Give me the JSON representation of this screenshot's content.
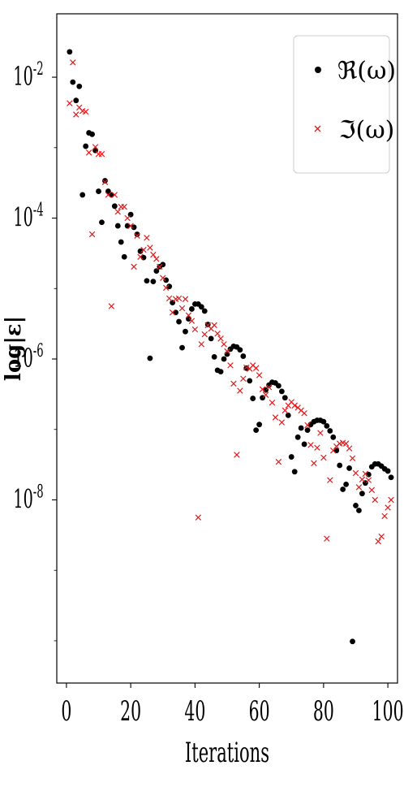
{
  "chart_data": {
    "type": "scatter",
    "xlabel": "Iterations",
    "ylabel": "log|ε|",
    "xlim": [
      -3,
      103
    ],
    "ylog": true,
    "ylim_exp": [
      -10.6,
      -1.1
    ],
    "x_ticks": [
      "0",
      "20",
      "40",
      "60",
      "80",
      "100"
    ],
    "x_tick_values": [
      0,
      20,
      40,
      60,
      80,
      100
    ],
    "y_ticks": [
      {
        "base": "10",
        "exp": "-2",
        "value_exp": -2
      },
      {
        "base": "10",
        "exp": "-4",
        "value_exp": -4
      },
      {
        "base": "10",
        "exp": "-6",
        "value_exp": -6
      },
      {
        "base": "10",
        "exp": "-8",
        "value_exp": -8
      }
    ],
    "legend_position": "top-right",
    "series": [
      {
        "name": "ℜ(ω)",
        "marker": "circle",
        "color": "#000000",
        "points": [
          [
            1,
            -1.64
          ],
          [
            2,
            -2.07
          ],
          [
            3,
            -2.33
          ],
          [
            4,
            -2.13
          ],
          [
            5,
            -3.67
          ],
          [
            6,
            -2.98
          ],
          [
            7,
            -2.79
          ],
          [
            8,
            -2.81
          ],
          [
            9,
            -3.04
          ],
          [
            10,
            -3.62
          ],
          [
            11,
            -4.06
          ],
          [
            12,
            -3.47
          ],
          [
            13,
            -3.62
          ],
          [
            14,
            -3.67
          ],
          [
            15,
            -3.83
          ],
          [
            16,
            -4.11
          ],
          [
            17,
            -4.34
          ],
          [
            18,
            -4.55
          ],
          [
            19,
            -4.11
          ],
          [
            20,
            -3.95
          ],
          [
            21,
            -4.13
          ],
          [
            22,
            -4.23
          ],
          [
            23,
            -4.47
          ],
          [
            24,
            -4.56
          ],
          [
            25,
            -4.89
          ],
          [
            26,
            -5.99
          ],
          [
            27,
            -4.9
          ],
          [
            28,
            -4.75
          ],
          [
            29,
            -4.69
          ],
          [
            30,
            -4.66
          ],
          [
            31,
            -4.88
          ],
          [
            32,
            -4.97
          ],
          [
            33,
            -5.2
          ],
          [
            34,
            -5.34
          ],
          [
            35,
            -5.47
          ],
          [
            36,
            -5.84
          ],
          [
            37,
            -5.61
          ],
          [
            38,
            -5.43
          ],
          [
            39,
            -5.29
          ],
          [
            40,
            -5.22
          ],
          [
            41,
            -5.22
          ],
          [
            42,
            -5.26
          ],
          [
            43,
            -5.32
          ],
          [
            44,
            -5.51
          ],
          [
            45,
            -5.71
          ],
          [
            46,
            -5.97
          ],
          [
            47,
            -6.16
          ],
          [
            48,
            -6.18
          ],
          [
            49,
            -6.0
          ],
          [
            50,
            -5.93
          ],
          [
            51,
            -5.86
          ],
          [
            52,
            -5.82
          ],
          [
            53,
            -5.83
          ],
          [
            54,
            -5.87
          ],
          [
            55,
            -5.96
          ],
          [
            56,
            -6.13
          ],
          [
            57,
            -6.31
          ],
          [
            58,
            -6.56
          ],
          [
            59,
            -7.01
          ],
          [
            60,
            -6.93
          ],
          [
            61,
            -6.55
          ],
          [
            62,
            -6.44
          ],
          [
            63,
            -6.37
          ],
          [
            64,
            -6.33
          ],
          [
            65,
            -6.34
          ],
          [
            66,
            -6.38
          ],
          [
            67,
            -6.46
          ],
          [
            68,
            -6.55
          ],
          [
            69,
            -6.8
          ],
          [
            70,
            -7.39
          ],
          [
            71,
            -7.6
          ],
          [
            72,
            -7.11
          ],
          [
            73,
            -6.98
          ],
          [
            74,
            -7.21
          ],
          [
            75,
            -7.01
          ],
          [
            76,
            -6.93
          ],
          [
            77,
            -6.89
          ],
          [
            78,
            -6.87
          ],
          [
            79,
            -6.87
          ],
          [
            80,
            -6.89
          ],
          [
            81,
            -6.95
          ],
          [
            82,
            -7.02
          ],
          [
            83,
            -7.11
          ],
          [
            84,
            -7.3
          ],
          [
            85,
            -7.51
          ],
          [
            86,
            -7.85
          ],
          [
            87,
            -7.78
          ],
          [
            88,
            -7.55
          ],
          [
            89,
            -10.01
          ],
          [
            90,
            -8.08
          ],
          [
            91,
            -8.15
          ],
          [
            92,
            -7.91
          ],
          [
            93,
            -7.76
          ],
          [
            94,
            -7.64
          ],
          [
            95,
            -7.53
          ],
          [
            96,
            -7.49
          ],
          [
            97,
            -7.49
          ],
          [
            98,
            -7.52
          ],
          [
            99,
            -7.56
          ],
          [
            100,
            -7.59
          ],
          [
            101,
            -7.68
          ]
        ]
      },
      {
        "name": "ℑ(ω)",
        "marker": "x",
        "color": "#e31a1c",
        "points": [
          [
            1,
            -2.37
          ],
          [
            2,
            -1.79
          ],
          [
            3,
            -2.53
          ],
          [
            4,
            -2.43
          ],
          [
            5,
            -2.48
          ],
          [
            6,
            -2.49
          ],
          [
            7,
            -3.07
          ],
          [
            8,
            -4.23
          ],
          [
            9,
            -2.99
          ],
          [
            10,
            -3.09
          ],
          [
            11,
            -3.09
          ],
          [
            12,
            -3.49
          ],
          [
            13,
            -3.67
          ],
          [
            14,
            -5.25
          ],
          [
            15,
            -3.67
          ],
          [
            16,
            -3.91
          ],
          [
            17,
            -3.84
          ],
          [
            18,
            -3.84
          ],
          [
            19,
            -4.0
          ],
          [
            20,
            -4.11
          ],
          [
            21,
            -4.69
          ],
          [
            22,
            -4.25
          ],
          [
            23,
            -4.55
          ],
          [
            24,
            -4.45
          ],
          [
            25,
            -4.28
          ],
          [
            26,
            -4.42
          ],
          [
            27,
            -4.52
          ],
          [
            28,
            -4.58
          ],
          [
            29,
            -4.69
          ],
          [
            30,
            -4.85
          ],
          [
            31,
            -4.99
          ],
          [
            32,
            -5.14
          ],
          [
            33,
            -5.34
          ],
          [
            34,
            -5.15
          ],
          [
            35,
            -5.14
          ],
          [
            36,
            -5.28
          ],
          [
            37,
            -5.15
          ],
          [
            38,
            -5.38
          ],
          [
            39,
            -5.46
          ],
          [
            40,
            -5.58
          ],
          [
            41,
            -8.25
          ],
          [
            42,
            -5.79
          ],
          [
            43,
            -5.65
          ],
          [
            44,
            -5.52
          ],
          [
            45,
            -5.57
          ],
          [
            46,
            -5.52
          ],
          [
            47,
            -5.64
          ],
          [
            48,
            -5.71
          ],
          [
            49,
            -5.79
          ],
          [
            50,
            -5.89
          ],
          [
            51,
            -6.09
          ],
          [
            52,
            -6.35
          ],
          [
            53,
            -7.36
          ],
          [
            54,
            -6.45
          ],
          [
            55,
            -6.28
          ],
          [
            56,
            -6.12
          ],
          [
            57,
            -6.14
          ],
          [
            58,
            -6.09
          ],
          [
            59,
            -6.13
          ],
          [
            60,
            -6.23
          ],
          [
            61,
            -6.43
          ],
          [
            62,
            -6.51
          ],
          [
            63,
            -6.4
          ],
          [
            64,
            -6.62
          ],
          [
            65,
            -6.83
          ],
          [
            66,
            -7.46
          ],
          [
            67,
            -6.9
          ],
          [
            68,
            -6.73
          ],
          [
            69,
            -6.66
          ],
          [
            70,
            -6.61
          ],
          [
            71,
            -6.66
          ],
          [
            72,
            -6.69
          ],
          [
            73,
            -6.73
          ],
          [
            74,
            -6.77
          ],
          [
            75,
            -6.94
          ],
          [
            76,
            -7.22
          ],
          [
            77,
            -7.48
          ],
          [
            78,
            -7.26
          ],
          [
            79,
            -7.05
          ],
          [
            80,
            -7.4
          ],
          [
            81,
            -8.55
          ],
          [
            82,
            -7.72
          ],
          [
            83,
            -7.3
          ],
          [
            84,
            -7.24
          ],
          [
            85,
            -7.2
          ],
          [
            86,
            -7.19
          ],
          [
            87,
            -7.2
          ],
          [
            88,
            -7.27
          ],
          [
            89,
            -7.41
          ],
          [
            90,
            -7.62
          ],
          [
            91,
            -7.82
          ],
          [
            92,
            -7.71
          ],
          [
            93,
            -7.63
          ],
          [
            94,
            -7.72
          ],
          [
            95,
            -7.86
          ],
          [
            96,
            -8.0
          ],
          [
            97,
            -8.59
          ],
          [
            98,
            -8.52
          ],
          [
            99,
            -8.23
          ],
          [
            100,
            -8.11
          ],
          [
            101,
            -8.0
          ]
        ]
      }
    ]
  }
}
